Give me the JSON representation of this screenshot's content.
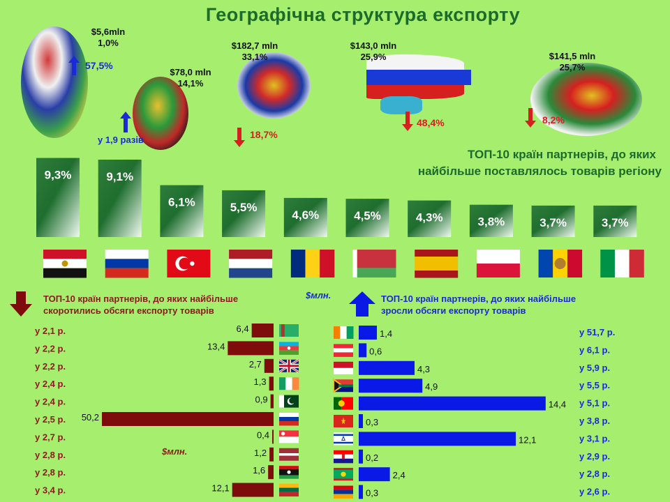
{
  "title": "Географічна структура експорту",
  "regions": [
    {
      "amount": "$5,6mln",
      "share": "1,0%",
      "change": "57,5%",
      "dir": "up"
    },
    {
      "amount": "$78,0 mln",
      "share": "14,1%",
      "change": "у 1,9 разів",
      "dir": "up"
    },
    {
      "amount": "$182,7 mln",
      "share": "33,1%",
      "change": "18,7%",
      "dir": "down"
    },
    {
      "amount": "$143,0 mln",
      "share": "25,9%",
      "change": "48,4%",
      "dir": "down"
    },
    {
      "amount": "$141,5 mln",
      "share": "25,7%",
      "change": "8,2%",
      "dir": "down"
    }
  ],
  "top10_title_line1": "ТОП-10 країн партнерів, до яких",
  "top10_title_line2": "найбільше поставлялось товарів регіону",
  "colors": {
    "background": "#a6ef6e",
    "declined": "#7e0c0c",
    "grew": "#0a19e6",
    "title": "#1d6b2a"
  },
  "declined": {
    "title_line1": "ТОП-10 країн партнерів, до яких найбільше",
    "title_line2": "скоротились обсяги експорту товарів",
    "unit": "$млн."
  },
  "grew": {
    "title_line1": "ТОП-10 країн партнерів, до яких найбільше",
    "title_line2": "зросли обсяги експорту товарів",
    "unit": "$млн."
  },
  "chart_data": [
    {
      "type": "bar",
      "values": [
        9.3,
        9.1,
        6.1,
        5.5,
        4.6,
        4.5,
        4.3,
        3.8,
        3.7,
        3.7
      ],
      "labels": [
        "9,3%",
        "9,1%",
        "6,1%",
        "5,5%",
        "4,6%",
        "4,5%",
        "4,3%",
        "3,8%",
        "3,7%",
        "3,7%"
      ],
      "flags": [
        "egypt-flag",
        "russia-flag",
        "turkey-flag",
        "netherlands-flag",
        "romania-flag",
        "belarus-flag",
        "spain-flag",
        "poland-flag",
        "moldova-flag",
        "italy-flag"
      ]
    },
    {
      "type": "bar",
      "orientation": "horizontal",
      "values": [
        6.4,
        13.4,
        2.7,
        1.3,
        0.9,
        50.2,
        0.4,
        1.2,
        1.6,
        12.1
      ],
      "labels": [
        "6,4",
        "13,4",
        "2,7",
        "1,3",
        "0,9",
        "50,2",
        "0,4",
        "1,2",
        "1,6",
        "12,1"
      ],
      "multipliers": [
        "у 2,1 р.",
        "у 2,2 р.",
        "у 2,2 р.",
        "у 2,4 р.",
        "у 2,4 р.",
        "у 2,5 р.",
        "у 2,7 р.",
        "у 2,8 р.",
        "у 2,8 р.",
        "у 3,4 р."
      ],
      "flags": [
        "turkmenistan-flag",
        "azerbaijan-flag",
        "uk-flag",
        "ireland-flag",
        "pakistan-flag",
        "russia-flag",
        "singapore-flag",
        "latvia-flag",
        "libya-flag",
        "lithuania-flag"
      ]
    },
    {
      "type": "bar",
      "orientation": "horizontal",
      "values": [
        1.4,
        0.6,
        4.3,
        4.9,
        14.4,
        0.3,
        12.1,
        0.2,
        2.4,
        0.3
      ],
      "labels": [
        "1,4",
        "0,6",
        "4,3",
        "4,9",
        "14,4",
        "0,3",
        "12,1",
        "0,2",
        "2,4",
        "0,3"
      ],
      "multipliers": [
        "у 51,7 р.",
        "у 6,1 р.",
        "у 5,9 р.",
        "у 5,5 р.",
        "у 5,1 р.",
        "у 3,8 р.",
        "у 3,1 р.",
        "у 2,9 р.",
        "у 2,8 р.",
        "у 2,6 р."
      ],
      "flags": [
        "ivory-coast-flag",
        "austria-flag",
        "indonesia-flag",
        "south-africa-flag",
        "portugal-flag",
        "vietnam-flag",
        "israel-flag",
        "croatia-flag",
        "mauritania-flag",
        "armenia-flag"
      ]
    }
  ]
}
